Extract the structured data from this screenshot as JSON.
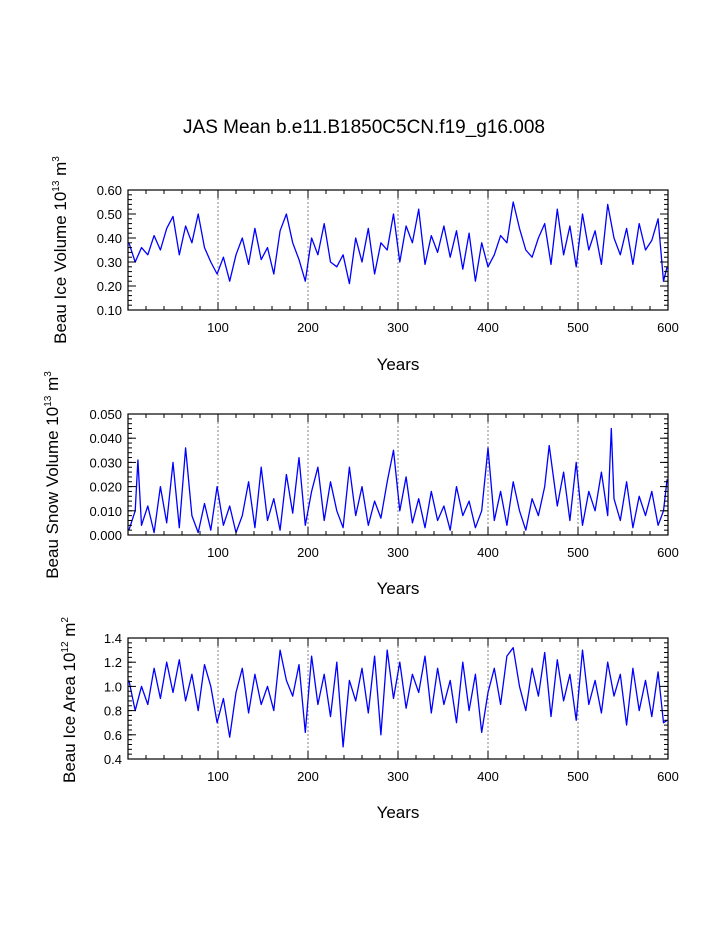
{
  "chart_data": {
    "title": "JAS Mean b.e11.B1850C5CN.f19_g16.008",
    "colors": {
      "series": "#0000ff",
      "axis": "#000000",
      "grid": "#666666"
    },
    "panels": [
      {
        "type": "line",
        "ylabel_main": "Beau Ice Volume 10",
        "ylabel_exp": "13",
        "ylabel_unit": " m",
        "ylabel_unit_exp": "3",
        "xlabel": "Years",
        "xlim": [
          0,
          600
        ],
        "ylim": [
          0.1,
          0.6
        ],
        "xticks": [
          100,
          200,
          300,
          400,
          500,
          600
        ],
        "xtick_labels": [
          "100",
          "200",
          "300",
          "400",
          "500",
          "600"
        ],
        "yticks": [
          0.1,
          0.2,
          0.3,
          0.4,
          0.5,
          0.6
        ],
        "ytick_labels": [
          "0.10",
          "0.20",
          "0.30",
          "0.40",
          "0.50",
          "0.60"
        ],
        "grid_x": [
          100,
          200,
          300,
          400,
          500
        ],
        "series": {
          "name": "ice_volume",
          "x": [
            1,
            8,
            15,
            22,
            29,
            36,
            43,
            50,
            57,
            64,
            71,
            78,
            85,
            92,
            99,
            106,
            113,
            120,
            127,
            134,
            141,
            148,
            155,
            162,
            169,
            176,
            183,
            190,
            197,
            204,
            211,
            218,
            225,
            232,
            239,
            246,
            253,
            260,
            267,
            274,
            281,
            288,
            295,
            302,
            309,
            316,
            323,
            330,
            337,
            344,
            351,
            358,
            365,
            372,
            379,
            386,
            393,
            400,
            407,
            414,
            421,
            428,
            435,
            442,
            449,
            456,
            463,
            470,
            477,
            484,
            491,
            498,
            505,
            512,
            519,
            526,
            533,
            540,
            547,
            554,
            561,
            568,
            575,
            582,
            589,
            595,
            599
          ],
          "values": [
            0.38,
            0.3,
            0.36,
            0.33,
            0.41,
            0.35,
            0.44,
            0.49,
            0.33,
            0.45,
            0.38,
            0.5,
            0.36,
            0.3,
            0.25,
            0.32,
            0.22,
            0.33,
            0.4,
            0.29,
            0.44,
            0.31,
            0.36,
            0.25,
            0.43,
            0.5,
            0.38,
            0.31,
            0.22,
            0.4,
            0.33,
            0.46,
            0.3,
            0.28,
            0.33,
            0.21,
            0.4,
            0.3,
            0.44,
            0.25,
            0.38,
            0.35,
            0.5,
            0.3,
            0.45,
            0.38,
            0.52,
            0.29,
            0.41,
            0.34,
            0.45,
            0.32,
            0.43,
            0.27,
            0.42,
            0.22,
            0.38,
            0.28,
            0.33,
            0.41,
            0.38,
            0.55,
            0.44,
            0.35,
            0.32,
            0.4,
            0.46,
            0.29,
            0.52,
            0.33,
            0.45,
            0.28,
            0.5,
            0.35,
            0.43,
            0.29,
            0.54,
            0.4,
            0.33,
            0.44,
            0.29,
            0.46,
            0.35,
            0.39,
            0.48,
            0.22,
            0.28
          ]
        }
      },
      {
        "type": "line",
        "ylabel_main": "Beau Snow Volume 10",
        "ylabel_exp": "13",
        "ylabel_unit": " m",
        "ylabel_unit_exp": "3",
        "xlabel": "Years",
        "xlim": [
          0,
          600
        ],
        "ylim": [
          0.0,
          0.05
        ],
        "xticks": [
          100,
          200,
          300,
          400,
          500,
          600
        ],
        "xtick_labels": [
          "100",
          "200",
          "300",
          "400",
          "500",
          "600"
        ],
        "yticks": [
          0.0,
          0.01,
          0.02,
          0.03,
          0.04,
          0.05
        ],
        "ytick_labels": [
          "0.000",
          "0.010",
          "0.020",
          "0.030",
          "0.040",
          "0.050"
        ],
        "grid_x": [
          100,
          200,
          300,
          400,
          500
        ],
        "series": {
          "name": "snow_volume",
          "x": [
            1,
            8,
            11,
            15,
            22,
            29,
            36,
            43,
            50,
            57,
            64,
            71,
            78,
            85,
            92,
            99,
            106,
            113,
            120,
            127,
            134,
            141,
            148,
            155,
            162,
            169,
            176,
            183,
            190,
            197,
            204,
            211,
            218,
            225,
            232,
            239,
            246,
            253,
            260,
            267,
            274,
            281,
            288,
            295,
            302,
            309,
            316,
            323,
            330,
            337,
            344,
            351,
            358,
            365,
            372,
            379,
            386,
            393,
            400,
            407,
            414,
            421,
            428,
            435,
            442,
            449,
            456,
            463,
            468,
            477,
            484,
            491,
            498,
            505,
            512,
            519,
            526,
            533,
            537,
            540,
            547,
            554,
            561,
            568,
            575,
            582,
            589,
            595,
            599
          ],
          "values": [
            0.002,
            0.01,
            0.031,
            0.004,
            0.012,
            0.001,
            0.02,
            0.005,
            0.03,
            0.003,
            0.036,
            0.008,
            0.001,
            0.013,
            0.002,
            0.02,
            0.004,
            0.012,
            0.001,
            0.008,
            0.022,
            0.003,
            0.028,
            0.006,
            0.015,
            0.002,
            0.025,
            0.009,
            0.032,
            0.004,
            0.018,
            0.028,
            0.006,
            0.022,
            0.01,
            0.003,
            0.028,
            0.008,
            0.02,
            0.004,
            0.014,
            0.007,
            0.022,
            0.035,
            0.01,
            0.024,
            0.005,
            0.015,
            0.003,
            0.018,
            0.006,
            0.012,
            0.002,
            0.02,
            0.008,
            0.014,
            0.003,
            0.01,
            0.036,
            0.006,
            0.018,
            0.004,
            0.022,
            0.01,
            0.002,
            0.015,
            0.008,
            0.02,
            0.037,
            0.012,
            0.026,
            0.006,
            0.03,
            0.004,
            0.018,
            0.01,
            0.026,
            0.008,
            0.044,
            0.015,
            0.006,
            0.022,
            0.003,
            0.016,
            0.008,
            0.018,
            0.004,
            0.01,
            0.023
          ]
        }
      },
      {
        "type": "line",
        "ylabel_main": "Beau Ice Area 10",
        "ylabel_exp": "12",
        "ylabel_unit": " m",
        "ylabel_unit_exp": "2",
        "xlabel": "Years",
        "xlim": [
          0,
          600
        ],
        "ylim": [
          0.4,
          1.4
        ],
        "xticks": [
          100,
          200,
          300,
          400,
          500,
          600
        ],
        "xtick_labels": [
          "100",
          "200",
          "300",
          "400",
          "500",
          "600"
        ],
        "yticks": [
          0.4,
          0.6,
          0.8,
          1.0,
          1.2,
          1.4
        ],
        "ytick_labels": [
          "0.4",
          "0.6",
          "0.8",
          "1.0",
          "1.2",
          "1.4"
        ],
        "grid_x": [
          100,
          200,
          300,
          400,
          500
        ],
        "series": {
          "name": "ice_area",
          "x": [
            1,
            8,
            15,
            22,
            29,
            36,
            43,
            50,
            57,
            64,
            71,
            78,
            85,
            92,
            99,
            106,
            113,
            120,
            127,
            134,
            141,
            148,
            155,
            162,
            169,
            176,
            183,
            190,
            197,
            204,
            211,
            218,
            225,
            232,
            239,
            246,
            253,
            260,
            267,
            274,
            281,
            288,
            295,
            302,
            309,
            316,
            323,
            330,
            337,
            344,
            351,
            358,
            365,
            372,
            379,
            386,
            393,
            400,
            407,
            414,
            421,
            428,
            435,
            442,
            449,
            456,
            463,
            470,
            477,
            484,
            491,
            498,
            505,
            512,
            519,
            526,
            533,
            540,
            547,
            554,
            561,
            568,
            575,
            582,
            589,
            595,
            599
          ],
          "values": [
            1.05,
            0.8,
            1.0,
            0.85,
            1.15,
            0.9,
            1.2,
            0.95,
            1.22,
            0.88,
            1.1,
            0.8,
            1.18,
            1.0,
            0.7,
            0.9,
            0.58,
            0.95,
            1.15,
            0.78,
            1.1,
            0.85,
            1.0,
            0.8,
            1.3,
            1.05,
            0.92,
            1.18,
            0.62,
            1.25,
            0.85,
            1.1,
            0.75,
            1.2,
            0.5,
            1.05,
            0.88,
            1.15,
            0.78,
            1.25,
            0.6,
            1.3,
            0.9,
            1.2,
            0.82,
            1.1,
            0.95,
            1.25,
            0.78,
            1.15,
            0.85,
            1.05,
            0.7,
            1.2,
            0.8,
            1.1,
            0.62,
            0.95,
            1.15,
            0.85,
            1.25,
            1.32,
            1.0,
            0.8,
            1.15,
            0.92,
            1.28,
            0.75,
            1.22,
            0.88,
            1.1,
            0.72,
            1.3,
            0.85,
            1.05,
            0.78,
            1.2,
            0.92,
            1.1,
            0.68,
            1.15,
            0.8,
            1.05,
            0.75,
            1.12,
            0.7,
            0.72
          ]
        }
      }
    ]
  }
}
